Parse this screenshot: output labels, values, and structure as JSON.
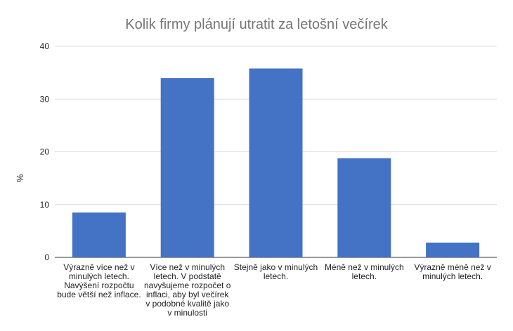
{
  "chart_data": {
    "type": "bar",
    "title": "Kolik firmy plánují utratit za letošní večírek",
    "xlabel": "",
    "ylabel": "%",
    "ylim": [
      0,
      40
    ],
    "yticks": [
      0,
      10,
      20,
      30,
      40
    ],
    "grid": true,
    "legend": "none",
    "bar_color": "#4472c4",
    "categories": [
      [
        "Výrazně více než v",
        "minulých letech.",
        "Navýšení rozpočtu",
        "bude větší než inflace."
      ],
      [
        "Více než v minulých",
        "letech. V podstatě",
        "navyšujeme rozpočet o",
        "inflaci, aby byl večírek",
        "v podobné kvalitě jako",
        "v minulosti"
      ],
      [
        "Stejně jako v minulých",
        "letech."
      ],
      [
        "Méně než v minulých",
        "letech."
      ],
      [
        "Výrazně méně než v",
        "minulých letech."
      ]
    ],
    "values": [
      8.5,
      34,
      35.8,
      18.8,
      2.8
    ]
  }
}
